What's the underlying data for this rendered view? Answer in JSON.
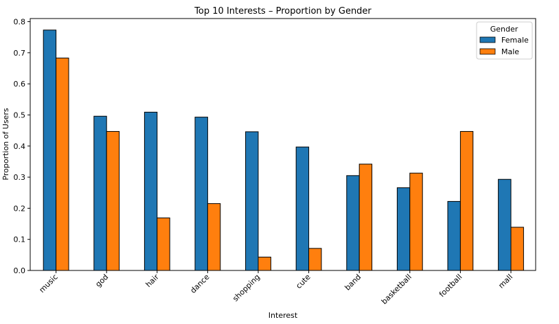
{
  "chart_data": {
    "type": "bar",
    "title": "Top 10 Interests – Proportion by Gender",
    "xlabel": "Interest",
    "ylabel": "Proportion of Users",
    "categories": [
      "music",
      "god",
      "hair",
      "dance",
      "shopping",
      "cute",
      "band",
      "basketball",
      "football",
      "mall"
    ],
    "series": [
      {
        "name": "Female",
        "color": "#1f77b4",
        "values": [
          0.773,
          0.496,
          0.509,
          0.493,
          0.446,
          0.397,
          0.305,
          0.266,
          0.222,
          0.293
        ]
      },
      {
        "name": "Male",
        "color": "#ff7f0e",
        "values": [
          0.683,
          0.447,
          0.169,
          0.215,
          0.043,
          0.071,
          0.342,
          0.313,
          0.447,
          0.139
        ]
      }
    ],
    "ylim": [
      0,
      0.81
    ],
    "yticks": [
      "0.0",
      "0.1",
      "0.2",
      "0.3",
      "0.4",
      "0.5",
      "0.6",
      "0.7",
      "0.8"
    ],
    "legend": {
      "title": "Gender",
      "placement": "top-right"
    },
    "grid": false
  }
}
